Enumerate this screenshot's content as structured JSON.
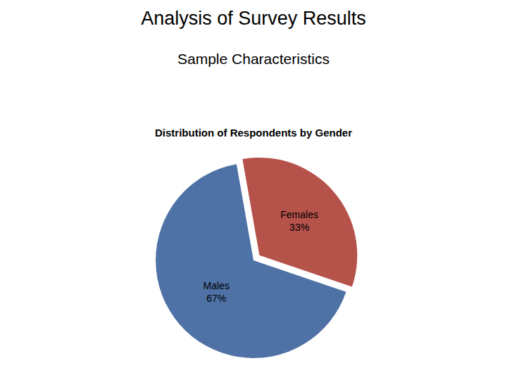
{
  "chart_data": {
    "type": "pie",
    "title": "Analysis of Survey Results",
    "subtitle": "Sample Characteristics",
    "annotations": [
      "Distribution of Respondents by Gender"
    ],
    "categories": [
      "Females",
      "Males"
    ],
    "values": [
      33,
      67
    ],
    "value_labels": [
      "33%",
      "67%"
    ],
    "data_labels": true,
    "colors": [
      "#b5524a",
      "#4f72a6"
    ]
  }
}
